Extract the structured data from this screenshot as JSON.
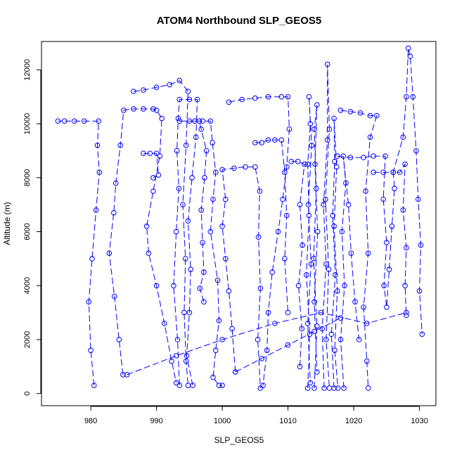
{
  "chart_data": {
    "type": "scatter",
    "title": "ATOM4 Northbound SLP_GEOS5",
    "xlabel": "SLP_GEOS5",
    "ylabel": "Altitude (m)",
    "xlim": [
      972.5,
      1032.5
    ],
    "ylim": [
      -450,
      13050
    ],
    "x_ticks": [
      980,
      990,
      1000,
      1010,
      1020,
      1030
    ],
    "y_ticks": [
      0,
      2000,
      4000,
      6000,
      8000,
      10000,
      12000
    ],
    "grid": false,
    "legend": "none",
    "marker": "open-circle",
    "line": "dashed",
    "color": "#0000ff",
    "series": [
      {
        "values": [
          [
            997.2,
            3400
          ],
          [
            996.6,
            3900
          ],
          [
            997.2,
            4500
          ],
          [
            997.0,
            5600
          ],
          [
            996.8,
            6800
          ],
          [
            997.3,
            8000
          ],
          [
            997.6,
            9000
          ],
          [
            996.8,
            9800
          ],
          [
            996.5,
            10100
          ],
          [
            995.0,
            10100
          ],
          [
            993.5,
            10100
          ],
          [
            995.8,
            10100
          ],
          [
            997.0,
            10100
          ],
          [
            998.2,
            10100
          ],
          [
            998.5,
            9300
          ],
          [
            999.0,
            8200
          ],
          [
            998.6,
            7200
          ],
          [
            998.2,
            6000
          ],
          [
            999.3,
            4200
          ],
          [
            999.5,
            2700
          ],
          [
            999.0,
            1600
          ],
          [
            998.6,
            600
          ],
          [
            999.5,
            300
          ],
          [
            1000.0,
            300
          ]
        ]
      },
      {
        "values": [
          [
            980.5,
            300
          ],
          [
            980.0,
            1600
          ],
          [
            979.7,
            3400
          ],
          [
            980.2,
            5000
          ],
          [
            980.8,
            6800
          ],
          [
            981.3,
            8200
          ],
          [
            981.0,
            9200
          ],
          [
            981.2,
            10100
          ],
          [
            979.0,
            10100
          ],
          [
            977.5,
            10100
          ],
          [
            976.0,
            10100
          ],
          [
            975.0,
            10100
          ]
        ]
      },
      {
        "values": [
          [
            984.9,
            700
          ],
          [
            984.3,
            2000
          ],
          [
            983.6,
            3600
          ],
          [
            982.8,
            5200
          ],
          [
            983.5,
            6700
          ],
          [
            983.8,
            7800
          ],
          [
            984.5,
            9200
          ],
          [
            985.0,
            10500
          ],
          [
            986.5,
            10550
          ],
          [
            988.0,
            10550
          ],
          [
            989.5,
            10550
          ],
          [
            990.0,
            10500
          ],
          [
            990.8,
            10200
          ],
          [
            990.5,
            8800
          ],
          [
            989.5,
            7500
          ],
          [
            988.5,
            6200
          ],
          [
            988.8,
            5200
          ],
          [
            990.0,
            4000
          ],
          [
            991.2,
            2600
          ],
          [
            992.3,
            1200
          ],
          [
            993.0,
            400
          ]
        ]
      },
      {
        "values": [
          [
            985.5,
            700
          ],
          [
            993.0,
            1400
          ],
          [
            1000.0,
            2000
          ],
          [
            1008.0,
            2600
          ],
          [
            1015.0,
            3000
          ],
          [
            1022.0,
            2600
          ],
          [
            1028.0,
            3000
          ]
        ]
      },
      {
        "values": [
          [
            993.5,
            300
          ],
          [
            993.2,
            2000
          ],
          [
            992.6,
            4000
          ],
          [
            993.0,
            6000
          ],
          [
            993.4,
            7600
          ],
          [
            993.1,
            9000
          ],
          [
            993.3,
            10200
          ],
          [
            993.5,
            10900
          ],
          [
            995.0,
            10900
          ],
          [
            996.2,
            10900
          ],
          [
            996.0,
            9500
          ],
          [
            995.4,
            8000
          ],
          [
            994.8,
            6400
          ],
          [
            995.2,
            4600
          ],
          [
            995.0,
            3000
          ],
          [
            994.6,
            1400
          ],
          [
            995.5,
            300
          ]
        ]
      },
      {
        "values": [
          [
            986.5,
            11200
          ],
          [
            988.0,
            11250
          ],
          [
            990.0,
            11350
          ],
          [
            992.0,
            11450
          ],
          [
            993.5,
            11600
          ],
          [
            994.8,
            11200
          ],
          [
            994.5,
            9200
          ],
          [
            994.0,
            7000
          ],
          [
            994.4,
            5000
          ],
          [
            994.2,
            3000
          ],
          [
            994.5,
            1200
          ],
          [
            994.8,
            300
          ]
        ]
      },
      {
        "values": [
          [
            1002.0,
            800
          ],
          [
            1001.5,
            2400
          ],
          [
            1001.0,
            3800
          ],
          [
            1000.5,
            5000
          ],
          [
            1000.0,
            6200
          ],
          [
            1000.5,
            7200
          ],
          [
            1000.0,
            8300
          ],
          [
            1001.8,
            8350
          ],
          [
            1003.5,
            8400
          ],
          [
            1005.0,
            8400
          ],
          [
            1005.7,
            7500
          ],
          [
            1005.5,
            5800
          ],
          [
            1005.8,
            3900
          ],
          [
            1005.4,
            2000
          ],
          [
            1005.8,
            200
          ]
        ]
      },
      {
        "values": [
          [
            1001.0,
            10800
          ],
          [
            1003.0,
            10900
          ],
          [
            1005.0,
            10950
          ],
          [
            1007.0,
            11000
          ],
          [
            1009.0,
            11000
          ],
          [
            1010.0,
            11000
          ],
          [
            1010.2,
            9800
          ],
          [
            1009.8,
            8400
          ],
          [
            1009.2,
            7200
          ],
          [
            1008.5,
            6000
          ],
          [
            1007.6,
            4500
          ],
          [
            1007.0,
            3000
          ],
          [
            1006.8,
            1600
          ],
          [
            1006.2,
            300
          ]
        ]
      },
      {
        "values": [
          [
            1002.0,
            800
          ],
          [
            1006.0,
            1300
          ],
          [
            1010.0,
            1800
          ],
          [
            1014.0,
            2300
          ],
          [
            1018.0,
            2800
          ]
        ]
      },
      {
        "values": [
          [
            1013.0,
            200
          ],
          [
            1013.3,
            2200
          ],
          [
            1012.8,
            4400
          ],
          [
            1013.2,
            6600
          ],
          [
            1013.0,
            8500
          ],
          [
            1013.4,
            10000
          ],
          [
            1013.2,
            11000
          ],
          [
            1013.6,
            9200
          ],
          [
            1013.1,
            7000
          ],
          [
            1013.5,
            4800
          ],
          [
            1013.0,
            2600
          ],
          [
            1013.4,
            400
          ]
        ]
      },
      {
        "values": [
          [
            1014.0,
            200
          ],
          [
            1014.4,
            2500
          ],
          [
            1013.9,
            5000
          ],
          [
            1014.3,
            7600
          ],
          [
            1014.0,
            9800
          ],
          [
            1014.4,
            10700
          ],
          [
            1014.1,
            8500
          ],
          [
            1014.5,
            6000
          ],
          [
            1014.0,
            3400
          ],
          [
            1014.4,
            800
          ]
        ]
      },
      {
        "values": [
          [
            1015.5,
            200
          ],
          [
            1015.2,
            2400
          ],
          [
            1015.8,
            4800
          ],
          [
            1015.4,
            7000
          ],
          [
            1016.0,
            9400
          ],
          [
            1016.0,
            12200
          ],
          [
            1016.3,
            9800
          ],
          [
            1015.7,
            7200
          ],
          [
            1016.2,
            4600
          ],
          [
            1015.8,
            2000
          ],
          [
            1016.3,
            200
          ]
        ]
      },
      {
        "values": [
          [
            1017.0,
            200
          ],
          [
            1016.6,
            2200
          ],
          [
            1017.2,
            4400
          ],
          [
            1016.8,
            6600
          ],
          [
            1017.1,
            8600
          ],
          [
            1017.0,
            10200
          ],
          [
            1017.4,
            8400
          ],
          [
            1017.0,
            6200
          ],
          [
            1017.5,
            3800
          ],
          [
            1017.1,
            1600
          ],
          [
            1017.6,
            200
          ]
        ]
      },
      {
        "values": [
          [
            1018.0,
            10500
          ],
          [
            1019.5,
            10450
          ],
          [
            1021.0,
            10400
          ],
          [
            1022.5,
            10300
          ],
          [
            1023.5,
            10300
          ],
          [
            1022.5,
            9500
          ],
          [
            1021.8,
            7500
          ],
          [
            1022.2,
            5200
          ],
          [
            1021.5,
            3200
          ],
          [
            1022.0,
            1200
          ],
          [
            1022.2,
            200
          ]
        ]
      },
      {
        "values": [
          [
            1018.5,
            200
          ],
          [
            1018.0,
            2000
          ],
          [
            1018.6,
            4000
          ],
          [
            1018.2,
            6000
          ],
          [
            1018.8,
            7800
          ],
          [
            1018.4,
            8800
          ],
          [
            1019.2,
            7000
          ],
          [
            1019.6,
            5200
          ],
          [
            1020.2,
            3400
          ],
          [
            1020.8,
            2000
          ]
        ]
      },
      {
        "values": [
          [
            1017.5,
            8800
          ],
          [
            1019.5,
            8750
          ],
          [
            1021.5,
            8750
          ],
          [
            1023.0,
            8800
          ],
          [
            1024.8,
            8800
          ],
          [
            1024.5,
            7200
          ],
          [
            1025.0,
            5600
          ],
          [
            1024.6,
            4000
          ],
          [
            1025.0,
            3200
          ],
          [
            1025.4,
            4600
          ],
          [
            1025.8,
            6200
          ],
          [
            1026.2,
            7600
          ],
          [
            1026.0,
            8200
          ],
          [
            1027.0,
            8200
          ],
          [
            1027.8,
            8500
          ],
          [
            1027.5,
            6800
          ],
          [
            1028.0,
            5400
          ],
          [
            1027.8,
            4000
          ],
          [
            1028.0,
            2900
          ]
        ]
      },
      {
        "values": [
          [
            1023.0,
            8200
          ],
          [
            1024.5,
            8200
          ],
          [
            1026.0,
            8200
          ],
          [
            1027.5,
            9500
          ],
          [
            1028.0,
            11000
          ],
          [
            1028.3,
            12800
          ],
          [
            1028.6,
            12500
          ],
          [
            1029.0,
            11000
          ],
          [
            1029.5,
            9000
          ],
          [
            1029.8,
            7200
          ],
          [
            1030.2,
            5500
          ],
          [
            1030.0,
            3800
          ],
          [
            1030.4,
            2200
          ]
        ]
      },
      {
        "values": [
          [
            1005.0,
            9300
          ],
          [
            1006.0,
            9300
          ],
          [
            1007.0,
            9400
          ],
          [
            1008.0,
            9400
          ],
          [
            1009.0,
            9400
          ],
          [
            1009.5,
            8200
          ],
          [
            1009.8,
            6600
          ],
          [
            1009.5,
            5000
          ],
          [
            1010.0,
            3000
          ]
        ]
      },
      {
        "values": [
          [
            988.0,
            8900
          ],
          [
            989.0,
            8900
          ],
          [
            990.0,
            8900
          ],
          [
            990.3,
            8100
          ],
          [
            989.5,
            8000
          ]
        ]
      },
      {
        "values": [
          [
            1010.5,
            8600
          ],
          [
            1011.5,
            8600
          ],
          [
            1012.5,
            8500
          ],
          [
            1011.8,
            7000
          ],
          [
            1012.2,
            5500
          ],
          [
            1011.6,
            4000
          ],
          [
            1012.1,
            2400
          ],
          [
            1011.8,
            1000
          ]
        ]
      }
    ]
  }
}
